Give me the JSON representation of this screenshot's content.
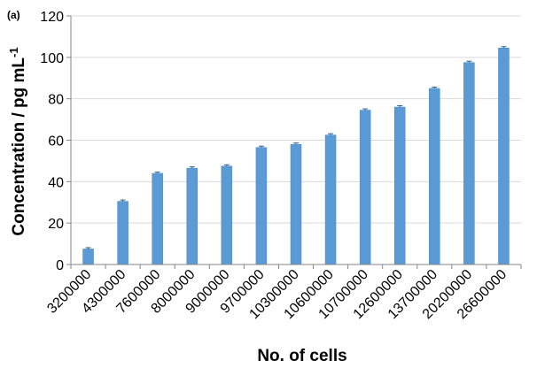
{
  "chart_data": {
    "type": "bar",
    "panel_label": "(a)",
    "xlabel": "No. of cells",
    "ylabel": "Concentration / pg mL",
    "ylabel_superscript": "-1",
    "categories": [
      "3200000",
      "4300000",
      "7600000",
      "8000000",
      "9000000",
      "9700000",
      "10300000",
      "10600000",
      "10700000",
      "12600000",
      "13700000",
      "20200000",
      "26600000"
    ],
    "values": [
      7.5,
      30.5,
      44,
      46.5,
      47.5,
      56.5,
      58,
      62.5,
      74.5,
      76,
      85,
      97.5,
      104.5
    ],
    "ylim": [
      0,
      120
    ],
    "yticks": [
      "0",
      "20",
      "40",
      "60",
      "80",
      "100",
      "120"
    ],
    "grid": "horizontal",
    "error_bars": true,
    "bar_color": "#5B9BD5",
    "bar_edge_color": "#4A86C0",
    "grid_color": "#D9D9D9"
  }
}
